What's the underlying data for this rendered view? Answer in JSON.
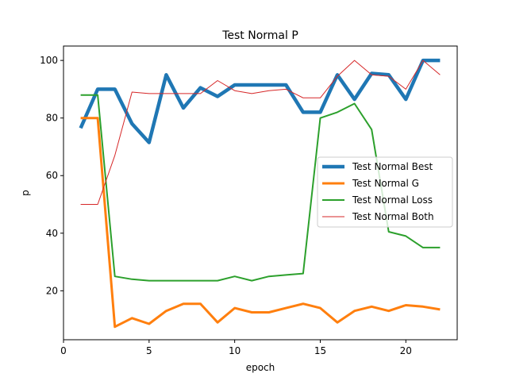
{
  "chart_data": {
    "type": "line",
    "title": "Test Normal P",
    "xlabel": "epoch",
    "ylabel": "p",
    "xlim": [
      0,
      23
    ],
    "ylim": [
      3,
      105
    ],
    "xticks": [
      0,
      5,
      10,
      15,
      20
    ],
    "yticks": [
      20,
      40,
      60,
      80,
      100
    ],
    "grid": false,
    "legend_position": "center right",
    "x": [
      1,
      2,
      3,
      4,
      5,
      6,
      7,
      8,
      9,
      10,
      11,
      12,
      13,
      14,
      15,
      16,
      17,
      18,
      19,
      20,
      21,
      22
    ],
    "series": [
      {
        "name": "Test Normal Best",
        "color": "#1f77b4",
        "linewidth": 4.5,
        "values": [
          76.5,
          90,
          90,
          78,
          71.5,
          95,
          83.5,
          90.5,
          87.5,
          91.5,
          91.5,
          91.5,
          91.5,
          82,
          82,
          95,
          86.5,
          95.5,
          95,
          86.5,
          100,
          100
        ]
      },
      {
        "name": "Test Normal G",
        "color": "#ff7f0e",
        "linewidth": 3,
        "values": [
          80,
          80,
          7.5,
          10.5,
          8.5,
          13,
          15.5,
          15.5,
          9,
          14,
          12.5,
          12.5,
          14,
          15.5,
          14,
          9,
          13,
          14.5,
          13,
          15,
          14.5,
          13.5
        ]
      },
      {
        "name": "Test Normal Loss",
        "color": "#2ca02c",
        "linewidth": 2,
        "values": [
          88,
          88,
          25,
          24,
          23.5,
          23.5,
          23.5,
          23.5,
          23.5,
          25,
          23.5,
          25,
          25.5,
          26,
          80,
          82,
          85,
          76,
          40.5,
          39,
          35,
          35
        ]
      },
      {
        "name": "Test Normal Both",
        "color": "#d62728",
        "linewidth": 1,
        "values": [
          50,
          50,
          67,
          89,
          88.5,
          88.5,
          88.5,
          88.5,
          93,
          89.5,
          88.5,
          89.5,
          90,
          87,
          87,
          94.5,
          100,
          95,
          94.5,
          90,
          100,
          95
        ]
      }
    ]
  }
}
